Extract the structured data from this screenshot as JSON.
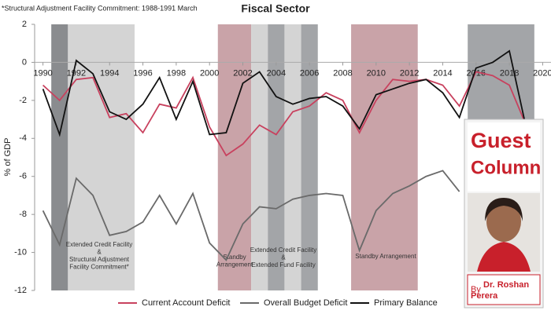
{
  "chart_data": {
    "type": "line",
    "title": "Fiscal Sector",
    "note": "*Structural Adjustment Facility Commitment: 1988-1991 March",
    "y_label": "% of GDP",
    "x": [
      1990,
      1991,
      1992,
      1993,
      1994,
      1995,
      1996,
      1997,
      1998,
      1999,
      2000,
      2001,
      2002,
      2003,
      2004,
      2005,
      2006,
      2007,
      2008,
      2009,
      2010,
      2011,
      2012,
      2013,
      2014,
      2015,
      2016,
      2017,
      2018,
      2019
    ],
    "series": [
      {
        "name": "Current Account Deficit",
        "color": "#c8415e",
        "values": [
          -1.2,
          -2.0,
          -0.9,
          -0.8,
          -2.9,
          -2.7,
          -3.7,
          -2.2,
          -2.4,
          -0.8,
          -3.4,
          -4.9,
          -4.3,
          -3.3,
          -3.8,
          -2.6,
          -2.3,
          -1.6,
          -2.0,
          -3.7,
          -2.0,
          -0.9,
          -1.0,
          -0.9,
          -1.2,
          -2.3,
          -0.5,
          -0.7,
          -1.2,
          -3.3
        ]
      },
      {
        "name": "Overall Budget Deficit",
        "color": "#6a6a6a",
        "values": [
          -7.8,
          -9.6,
          -6.1,
          -7.0,
          -9.1,
          -8.9,
          -8.4,
          -7.0,
          -8.5,
          -6.9,
          -9.5,
          -10.4,
          -8.5,
          -7.6,
          -7.7,
          -7.2,
          -7.0,
          -6.9,
          -7.0,
          -9.9,
          -7.8,
          -6.9,
          -6.5,
          -6.0,
          -5.7,
          -6.8,
          null,
          null,
          null,
          null
        ]
      },
      {
        "name": "Primary Balance",
        "color": "#111111",
        "values": [
          -1.4,
          -3.8,
          0.1,
          -0.6,
          -2.6,
          -3.0,
          -2.2,
          -0.8,
          -3.0,
          -1.0,
          -3.8,
          -3.7,
          -1.1,
          -0.5,
          -1.8,
          -2.2,
          -1.9,
          -1.8,
          -2.3,
          -3.5,
          -1.7,
          -1.4,
          -1.1,
          -0.9,
          -1.6,
          -2.9,
          -0.3,
          0.0,
          0.6,
          -3.4
        ]
      }
    ],
    "xlim": [
      1989.5,
      2020.5
    ],
    "xticks": [
      1990,
      1992,
      1994,
      1996,
      1998,
      2000,
      2002,
      2004,
      2006,
      2008,
      2010,
      2012,
      2014,
      2016,
      2018,
      2020
    ],
    "ylim": [
      -12,
      2
    ],
    "yticks": [
      -12,
      -10,
      -8,
      -6,
      -4,
      -2,
      0,
      2
    ],
    "shaded_periods": [
      {
        "start": 1990.5,
        "end": 1991.5,
        "color": "#8a8c8f"
      },
      {
        "start": 1991.5,
        "end": 1995.5,
        "color": "#d4d4d4"
      },
      {
        "start": 2000.5,
        "end": 2002.5,
        "color": "#c9a3a8"
      },
      {
        "start": 2002.5,
        "end": 2003.5,
        "color": "#d4d4d4"
      },
      {
        "start": 2003.5,
        "end": 2004.5,
        "color": "#a3a5a8"
      },
      {
        "start": 2004.5,
        "end": 2005.5,
        "color": "#d4d4d4"
      },
      {
        "start": 2005.5,
        "end": 2006.5,
        "color": "#a3a5a8"
      },
      {
        "start": 2008.5,
        "end": 2012.5,
        "color": "#c9a3a8"
      },
      {
        "start": 2015.5,
        "end": 2019.5,
        "color": "#a3a5a8"
      }
    ],
    "annotations": [
      [
        "Extended Credit Facility",
        "&",
        "Structural Adjustment",
        "Facility Commitment*"
      ],
      [
        "Standby",
        "Arrangement"
      ],
      [
        "Extended Credit Facility",
        "&",
        "Extended Fund Facility"
      ],
      [
        "Standby Arrangement"
      ]
    ]
  },
  "overlay": {
    "line1": "Guest",
    "line2": "Column",
    "byline_prefix": "By",
    "author": "Dr. Roshan Perera"
  }
}
